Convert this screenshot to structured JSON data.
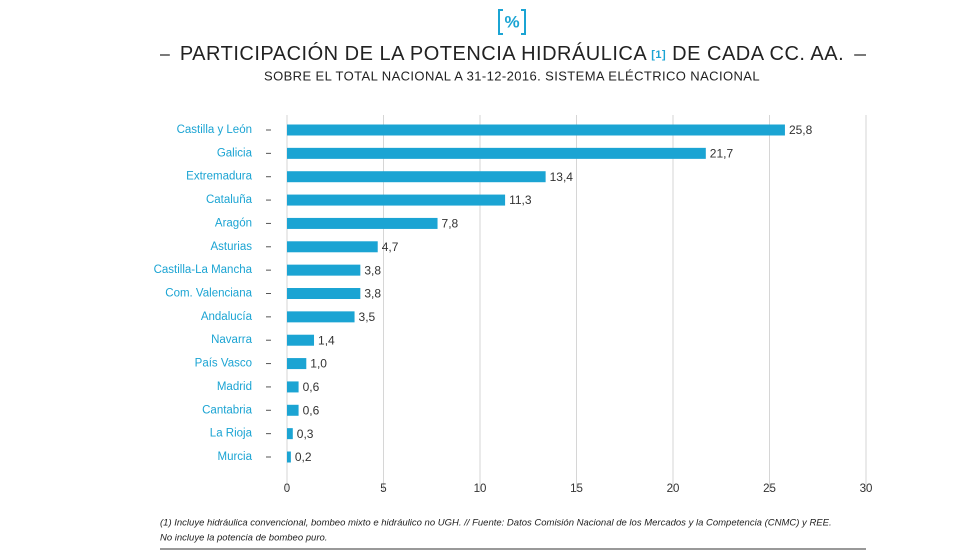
{
  "chart_data": {
    "type": "barh",
    "unit_badge": "%",
    "title": "PARTICIPACIÓN DE LA POTENCIA HIDRÁULICA",
    "title_note": "[1]",
    "title_end": "DE CADA CC. AA.",
    "subtitle": "SOBRE EL TOTAL NACIONAL A 31-12-2016. SISTEMA ELÉCTRICO NACIONAL",
    "categories": [
      "Castilla y León",
      "Galicia",
      "Extremadura",
      "Cataluña",
      "Aragón",
      "Asturias",
      "Castilla-La Mancha",
      "Com. Valenciana",
      "Andalucía",
      "Navarra",
      "País Vasco",
      "Madrid",
      "Cantabria",
      "La Rioja",
      "Murcia"
    ],
    "values": [
      25.8,
      21.7,
      13.4,
      11.3,
      7.8,
      4.7,
      3.8,
      3.8,
      3.5,
      1.4,
      1.0,
      0.6,
      0.6,
      0.3,
      0.2
    ],
    "value_labels": [
      "25,8",
      "21,7",
      "13,4",
      "11,3",
      "7,8",
      "4,7",
      "3,8",
      "3,8",
      "3,5",
      "1,4",
      "1,0",
      "0,6",
      "0,6",
      "0,3",
      "0,2"
    ],
    "color": "#1ba4d3",
    "xlim": [
      0,
      30
    ],
    "xticks": [
      0,
      5,
      10,
      15,
      20,
      25,
      30
    ],
    "grid": true,
    "footnotes": [
      "(1) Incluye hidráulica convencional, bombeo mixto e hidráulico no UGH. // Fuente: Datos Comisión Nacional de los Mercados y la Competencia (CNMC) y REE.",
      "No incluye la potencia de bombeo puro."
    ]
  }
}
